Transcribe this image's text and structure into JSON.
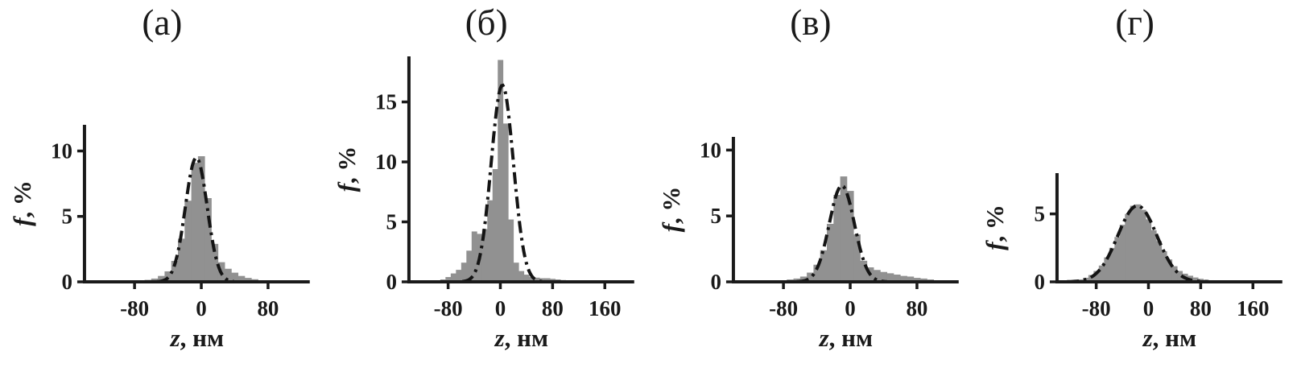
{
  "styles": {
    "background": "#ffffff",
    "bar_color": "#919191",
    "curve_color": "#141414",
    "axis_color": "#1a1a1a",
    "text_color": "#1a1a1a"
  },
  "chart_data": [
    {
      "type": "bar",
      "subtype": "histogram-with-fit",
      "title": "(а)",
      "xlabel": {
        "variable": "z",
        "suffix": ", нм"
      },
      "ylabel": {
        "variable": "f",
        "suffix": ", %"
      },
      "xlim": [
        -140,
        130
      ],
      "ylim": [
        0,
        12
      ],
      "xticks": [
        -80,
        0,
        80
      ],
      "yticks": [
        0,
        5,
        10
      ],
      "grid": false,
      "legend": false,
      "bins": {
        "first_center": -96,
        "width": 8
      },
      "values": [
        0.05,
        0.08,
        0.1,
        0.12,
        0.15,
        0.25,
        0.45,
        0.8,
        1.6,
        3.3,
        6.2,
        9.1,
        9.6,
        6.4,
        2.9,
        1.5,
        1.0,
        0.7,
        0.45,
        0.3,
        0.2,
        0.12,
        0.08,
        0.05
      ],
      "fit_curve": {
        "shape": "gaussian",
        "mu": -6,
        "sigma": 13,
        "amplitude": 9.5,
        "style": "dash-dot"
      }
    },
    {
      "type": "bar",
      "subtype": "histogram-with-fit",
      "title": "(б)",
      "xlabel": {
        "variable": "z",
        "suffix": ", нм"
      },
      "ylabel": {
        "variable": "f",
        "suffix": ", %"
      },
      "xlim": [
        -140,
        205
      ],
      "ylim": [
        0,
        18.8
      ],
      "xticks": [
        -80,
        0,
        80,
        160
      ],
      "yticks": [
        0,
        5,
        10,
        15
      ],
      "grid": false,
      "legend": false,
      "bins": {
        "first_center": -96,
        "width": 8
      },
      "values": [
        0.1,
        0.2,
        0.4,
        0.7,
        1.0,
        1.6,
        2.6,
        4.2,
        4.0,
        4.4,
        6.8,
        9.4,
        18.5,
        13.2,
        5.2,
        1.6,
        0.9,
        0.6,
        0.4,
        0.35,
        0.3,
        0.3,
        0.25,
        0.2,
        0.15,
        0.1,
        0.1,
        0.08,
        0.05,
        0.05,
        0.04,
        0.03,
        0.03
      ],
      "fit_curve": {
        "shape": "gaussian",
        "mu": 3,
        "sigma": 17,
        "amplitude": 16.4,
        "style": "dash-dot"
      }
    },
    {
      "type": "bar",
      "subtype": "histogram-with-fit",
      "title": "(в)",
      "xlabel": {
        "variable": "z",
        "suffix": ", нм"
      },
      "ylabel": {
        "variable": "f",
        "suffix": ", %"
      },
      "xlim": [
        -140,
        130
      ],
      "ylim": [
        0,
        11
      ],
      "xticks": [
        -80,
        0,
        80
      ],
      "yticks": [
        0,
        5,
        10
      ],
      "grid": false,
      "legend": false,
      "bins": {
        "first_center": -96,
        "width": 8
      },
      "values": [
        0.05,
        0.08,
        0.12,
        0.18,
        0.25,
        0.4,
        0.7,
        1.3,
        2.4,
        4.4,
        6.6,
        8.0,
        6.9,
        3.6,
        1.6,
        1.1,
        0.9,
        0.75,
        0.65,
        0.55,
        0.45,
        0.4,
        0.3,
        0.25,
        0.18,
        0.12
      ],
      "fit_curve": {
        "shape": "gaussian",
        "mu": -10,
        "sigma": 15,
        "amplitude": 7.3,
        "style": "dash-dot"
      }
    },
    {
      "type": "bar",
      "subtype": "histogram-with-fit",
      "title": "(г)",
      "xlabel": {
        "variable": "z",
        "suffix": ", нм"
      },
      "ylabel": {
        "variable": "f",
        "suffix": ", %"
      },
      "xlim": [
        -140,
        205
      ],
      "ylim": [
        0,
        8
      ],
      "xticks": [
        -80,
        0,
        80,
        160
      ],
      "yticks": [
        0,
        5
      ],
      "grid": false,
      "legend": false,
      "bins": {
        "first_center": -120,
        "width": 8
      },
      "values": [
        0.05,
        0.1,
        0.18,
        0.3,
        0.5,
        0.8,
        1.2,
        1.8,
        2.5,
        3.3,
        4.2,
        5.0,
        5.6,
        5.7,
        5.3,
        4.6,
        3.8,
        3.0,
        2.25,
        1.65,
        1.15,
        0.8,
        0.6,
        0.45,
        0.32,
        0.22,
        0.16,
        0.12,
        0.1,
        0.08,
        0.06,
        0.05,
        0.04,
        0.03,
        0.03
      ],
      "fit_curve": {
        "shape": "gaussian",
        "mu": -17,
        "sigma": 30,
        "amplitude": 5.6,
        "style": "dash-dot"
      }
    }
  ]
}
